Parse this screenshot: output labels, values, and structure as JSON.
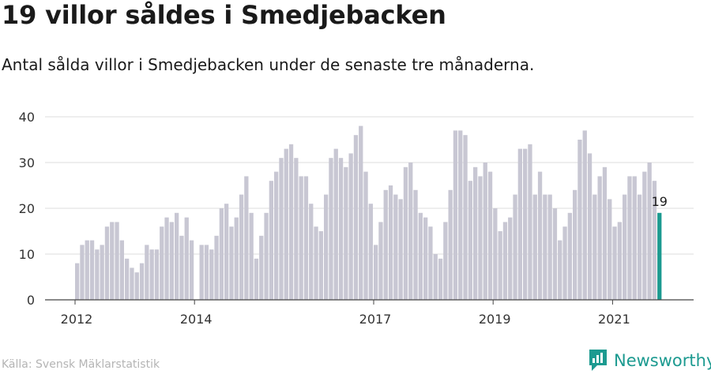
{
  "title": "19 villor såldes i Smedjebacken",
  "subtitle": "Antal sålda villor i Smedjebacken under de senaste tre månaderna.",
  "source": "Källa: Svensk Mäklarstatistik",
  "brand": "Newsworthy",
  "colors": {
    "bar": "#c8c7d3",
    "highlight": "#1c9a90",
    "grid": "#dddddd",
    "axis": "#444444"
  },
  "chart_data": {
    "type": "bar",
    "ylim": [
      0,
      40
    ],
    "yticks": [
      0,
      10,
      20,
      30,
      40
    ],
    "start": "2012-01",
    "xticks": [
      {
        "label": "2012",
        "index": 0
      },
      {
        "label": "2014",
        "index": 24
      },
      {
        "label": "2017",
        "index": 60
      },
      {
        "label": "2019",
        "index": 84
      },
      {
        "label": "2021",
        "index": 108
      }
    ],
    "values": [
      8,
      12,
      13,
      13,
      11,
      12,
      16,
      17,
      17,
      13,
      9,
      7,
      6,
      8,
      12,
      11,
      11,
      16,
      18,
      17,
      19,
      14,
      18,
      13,
      0,
      12,
      12,
      11,
      14,
      20,
      21,
      16,
      18,
      23,
      27,
      19,
      9,
      14,
      19,
      26,
      28,
      31,
      33,
      34,
      31,
      27,
      27,
      21,
      16,
      15,
      23,
      31,
      33,
      31,
      29,
      32,
      36,
      38,
      28,
      21,
      12,
      17,
      24,
      25,
      23,
      22,
      29,
      30,
      24,
      19,
      18,
      16,
      10,
      9,
      17,
      24,
      37,
      37,
      36,
      26,
      29,
      27,
      30,
      28,
      20,
      15,
      17,
      18,
      23,
      33,
      33,
      34,
      23,
      28,
      23,
      23,
      20,
      13,
      16,
      19,
      24,
      35,
      37,
      32,
      23,
      27,
      29,
      22,
      16,
      17,
      23,
      27,
      27,
      23,
      28,
      30,
      26,
      19
    ],
    "highlight_index": 117,
    "annotation": "19"
  }
}
